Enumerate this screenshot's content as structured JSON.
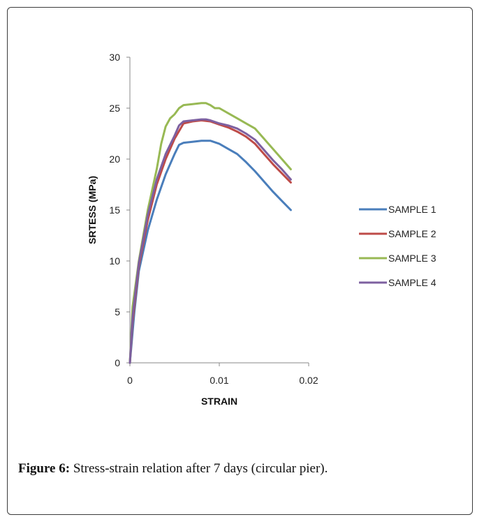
{
  "chart_data": {
    "type": "line",
    "xlabel": "STRAIN",
    "ylabel": "SRTESS (MPa)",
    "xlim": [
      0,
      0.02
    ],
    "ylim": [
      0,
      30
    ],
    "xticks": [
      "0",
      "0.01",
      "0.02"
    ],
    "yticks": [
      "0",
      "5",
      "10",
      "15",
      "20",
      "25",
      "30"
    ],
    "legend_position": "right",
    "series": [
      {
        "name": "SAMPLE 1",
        "color": "#4a7ebb",
        "points": [
          [
            0,
            0
          ],
          [
            0.0005,
            5
          ],
          [
            0.001,
            9
          ],
          [
            0.002,
            13
          ],
          [
            0.003,
            16
          ],
          [
            0.004,
            18.5
          ],
          [
            0.005,
            20.5
          ],
          [
            0.0055,
            21.4
          ],
          [
            0.006,
            21.6
          ],
          [
            0.007,
            21.7
          ],
          [
            0.008,
            21.8
          ],
          [
            0.009,
            21.8
          ],
          [
            0.01,
            21.5
          ],
          [
            0.011,
            21.0
          ],
          [
            0.012,
            20.5
          ],
          [
            0.013,
            19.7
          ],
          [
            0.014,
            18.8
          ],
          [
            0.015,
            17.8
          ],
          [
            0.016,
            16.8
          ],
          [
            0.017,
            15.9
          ],
          [
            0.018,
            15.0
          ]
        ]
      },
      {
        "name": "SAMPLE 2",
        "color": "#be4b48",
        "points": [
          [
            0,
            0
          ],
          [
            0.0003,
            4
          ],
          [
            0.001,
            9.5
          ],
          [
            0.002,
            14
          ],
          [
            0.003,
            17.5
          ],
          [
            0.004,
            20
          ],
          [
            0.005,
            22
          ],
          [
            0.006,
            23.5
          ],
          [
            0.007,
            23.7
          ],
          [
            0.008,
            23.8
          ],
          [
            0.009,
            23.7
          ],
          [
            0.01,
            23.4
          ],
          [
            0.011,
            23.1
          ],
          [
            0.012,
            22.7
          ],
          [
            0.013,
            22.2
          ],
          [
            0.014,
            21.5
          ],
          [
            0.015,
            20.5
          ],
          [
            0.016,
            19.5
          ],
          [
            0.017,
            18.6
          ],
          [
            0.018,
            17.7
          ]
        ]
      },
      {
        "name": "SAMPLE 3",
        "color": "#98b954",
        "points": [
          [
            0,
            0
          ],
          [
            0.0003,
            5.5
          ],
          [
            0.001,
            10
          ],
          [
            0.002,
            15
          ],
          [
            0.003,
            19
          ],
          [
            0.0035,
            21.5
          ],
          [
            0.004,
            23.2
          ],
          [
            0.0045,
            24.0
          ],
          [
            0.005,
            24.4
          ],
          [
            0.0055,
            25.0
          ],
          [
            0.006,
            25.3
          ],
          [
            0.007,
            25.4
          ],
          [
            0.008,
            25.5
          ],
          [
            0.0085,
            25.5
          ],
          [
            0.009,
            25.3
          ],
          [
            0.0095,
            25.0
          ],
          [
            0.01,
            25.0
          ],
          [
            0.011,
            24.5
          ],
          [
            0.012,
            24.0
          ],
          [
            0.013,
            23.5
          ],
          [
            0.014,
            23.0
          ],
          [
            0.015,
            22.0
          ],
          [
            0.016,
            21.0
          ],
          [
            0.017,
            20.0
          ],
          [
            0.018,
            19.0
          ]
        ]
      },
      {
        "name": "SAMPLE 4",
        "color": "#7d60a0",
        "points": [
          [
            0,
            0
          ],
          [
            0.0003,
            4.5
          ],
          [
            0.001,
            9.8
          ],
          [
            0.002,
            14.5
          ],
          [
            0.003,
            18
          ],
          [
            0.004,
            20.5
          ],
          [
            0.005,
            22.3
          ],
          [
            0.0055,
            23.3
          ],
          [
            0.006,
            23.7
          ],
          [
            0.007,
            23.8
          ],
          [
            0.008,
            23.9
          ],
          [
            0.0085,
            23.9
          ],
          [
            0.009,
            23.8
          ],
          [
            0.01,
            23.5
          ],
          [
            0.011,
            23.3
          ],
          [
            0.012,
            23.0
          ],
          [
            0.013,
            22.5
          ],
          [
            0.014,
            21.9
          ],
          [
            0.015,
            20.9
          ],
          [
            0.016,
            19.9
          ],
          [
            0.017,
            19.0
          ],
          [
            0.018,
            18.0
          ]
        ]
      }
    ]
  },
  "caption": {
    "label": "Figure 6:",
    "text": " Stress-strain relation after 7 days (circular pier)."
  }
}
